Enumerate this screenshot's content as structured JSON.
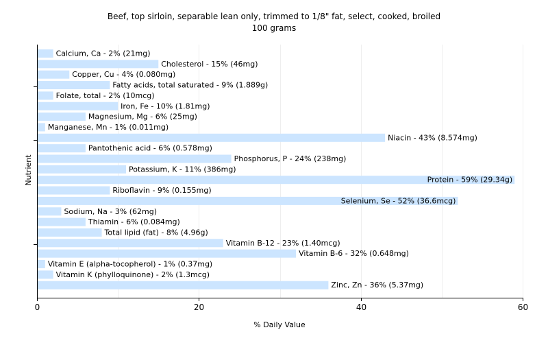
{
  "chart_data": {
    "type": "bar",
    "orientation": "horizontal",
    "title": "Beef, top sirloin, separable lean only, trimmed to 1/8\" fat, select, cooked, broiled",
    "subtitle": "100 grams",
    "xlabel": "% Daily Value",
    "ylabel": "Nutrient",
    "xlim": [
      0,
      60
    ],
    "xticks": [
      0,
      20,
      40,
      60
    ],
    "grid": true,
    "bar_color": "#cce5ff",
    "categories": [
      "Calcium, Ca",
      "Cholesterol",
      "Copper, Cu",
      "Fatty acids, total saturated",
      "Folate, total",
      "Iron, Fe",
      "Magnesium, Mg",
      "Manganese, Mn",
      "Niacin",
      "Pantothenic acid",
      "Phosphorus, P",
      "Potassium, K",
      "Protein",
      "Riboflavin",
      "Selenium, Se",
      "Sodium, Na",
      "Thiamin",
      "Total lipid (fat)",
      "Vitamin B-12",
      "Vitamin B-6",
      "Vitamin E (alpha-tocopherol)",
      "Vitamin K (phylloquinone)",
      "Zinc, Zn"
    ],
    "values": [
      2,
      15,
      4,
      9,
      2,
      10,
      6,
      1,
      43,
      6,
      24,
      11,
      59,
      9,
      52,
      3,
      6,
      8,
      23,
      32,
      1,
      2,
      36
    ],
    "labels": [
      "Calcium, Ca - 2% (21mg)",
      "Cholesterol - 15% (46mg)",
      "Copper, Cu - 4% (0.080mg)",
      "Fatty acids, total saturated - 9% (1.889g)",
      "Folate, total - 2% (10mcg)",
      "Iron, Fe - 10% (1.81mg)",
      "Magnesium, Mg - 6% (25mg)",
      "Manganese, Mn - 1% (0.011mg)",
      "Niacin - 43% (8.574mg)",
      "Pantothenic acid - 6% (0.578mg)",
      "Phosphorus, P - 24% (238mg)",
      "Potassium, K - 11% (386mg)",
      "Protein - 59% (29.34g)",
      "Riboflavin - 9% (0.155mg)",
      "Selenium, Se - 52% (36.6mcg)",
      "Sodium, Na - 3% (62mg)",
      "Thiamin - 6% (0.084mg)",
      "Total lipid (fat) - 8% (4.96g)",
      "Vitamin B-12 - 23% (1.40mcg)",
      "Vitamin B-6 - 32% (0.648mg)",
      "Vitamin E (alpha-tocopherol) - 1% (0.37mg)",
      "Vitamin K (phylloquinone) - 2% (1.3mcg)",
      "Zinc, Zn - 36% (5.37mg)"
    ]
  }
}
